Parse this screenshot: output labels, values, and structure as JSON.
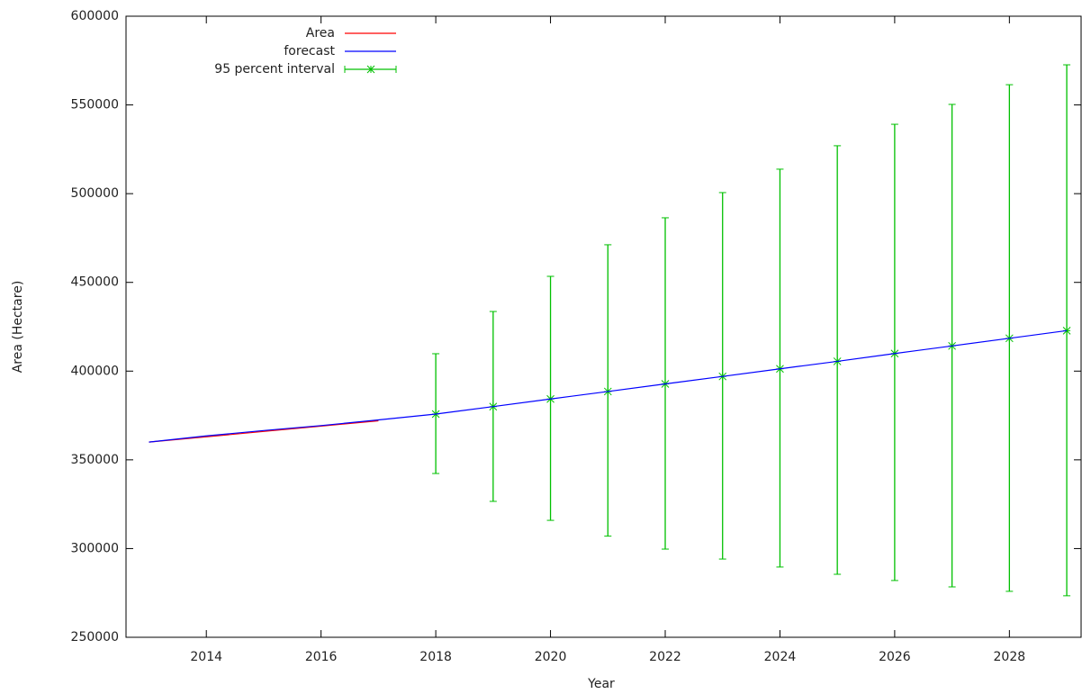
{
  "chart_data": {
    "type": "line",
    "x_label": "Year",
    "y_label": "Area (Hectare)",
    "x": [
      2013,
      2014,
      2015,
      2016,
      2017,
      2018,
      2019,
      2020,
      2021,
      2022,
      2023,
      2024,
      2025,
      2026,
      2027,
      2028,
      2029
    ],
    "series": [
      {
        "name": "Area",
        "color": "#ff0000",
        "values": [
          360000,
          363000,
          366000,
          369000,
          372000,
          null,
          null,
          null,
          null,
          null,
          null,
          null,
          null,
          null,
          null,
          null,
          null
        ]
      },
      {
        "name": "forecast",
        "color": "#0000ff",
        "values": [
          360000,
          363500,
          366500,
          369300,
          372500,
          375800,
          380000,
          384300,
          388500,
          392800,
          397000,
          401300,
          405500,
          409900,
          414200,
          418500,
          422800
        ]
      },
      {
        "name": "95 percent interval",
        "color": "#00c000",
        "values": [
          null,
          null,
          null,
          null,
          null,
          375800,
          380000,
          384300,
          388500,
          392800,
          397000,
          401300,
          405500,
          409900,
          414200,
          418500,
          422800
        ],
        "lower": [
          null,
          null,
          null,
          null,
          null,
          342300,
          326600,
          315900,
          307000,
          299700,
          294100,
          289600,
          285500,
          282000,
          278400,
          275900,
          273400
        ],
        "upper": [
          null,
          null,
          null,
          null,
          null,
          409800,
          433600,
          453400,
          471200,
          486400,
          500600,
          513800,
          527000,
          539100,
          550300,
          561400,
          572600
        ]
      }
    ],
    "xlim": [
      2012.6,
      2029.25
    ],
    "xticks": [
      2014,
      2016,
      2018,
      2020,
      2022,
      2024,
      2026,
      2028
    ],
    "ylim": [
      250000,
      600000
    ],
    "yticks": [
      250000,
      300000,
      350000,
      400000,
      450000,
      500000,
      550000,
      600000
    ],
    "grid": false,
    "legend": "top-left"
  }
}
